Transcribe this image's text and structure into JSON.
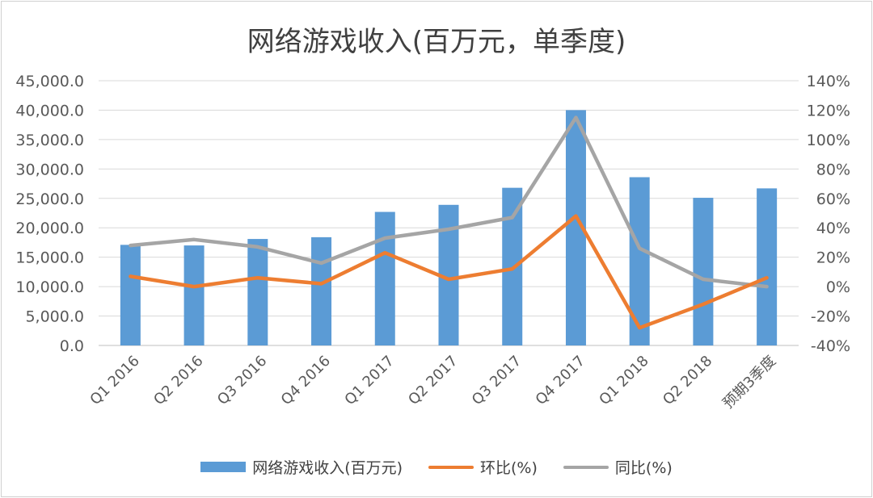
{
  "chart_data": {
    "type": "bar",
    "title": "网络游戏收入(百万元，单季度)",
    "categories": [
      "Q1 2016",
      "Q2 2016",
      "Q3 2016",
      "Q4 2016",
      "Q1 2017",
      "Q2 2017",
      "Q3 2017",
      "Q4 2017",
      "Q1 2018",
      "Q2 2018",
      "预期3季度"
    ],
    "ylim": [
      0,
      45000
    ],
    "yticks": [
      "0.0",
      "5,000.0",
      "10,000.0",
      "15,000.0",
      "20,000.0",
      "25,000.0",
      "30,000.0",
      "35,000.0",
      "40,000.0",
      "45,000.0"
    ],
    "y2lim": [
      -40,
      140
    ],
    "y2ticks": [
      "-40%",
      "-20%",
      "0%",
      "20%",
      "40%",
      "60%",
      "80%",
      "100%",
      "120%",
      "140%"
    ],
    "series": [
      {
        "name": "网络游戏收入(百万元)",
        "type": "bar",
        "axis": "left",
        "color": "#5b9bd5",
        "values": [
          17100,
          17000,
          18100,
          18400,
          22700,
          23900,
          26800,
          40000,
          28600,
          25100,
          26700
        ]
      },
      {
        "name": "环比(%)",
        "type": "line",
        "axis": "right",
        "color": "#ed7d31",
        "values": [
          7,
          0,
          6,
          2,
          23,
          5,
          12,
          48,
          -28,
          -12,
          6
        ]
      },
      {
        "name": "同比(%)",
        "type": "line",
        "axis": "right",
        "color": "#a5a5a5",
        "values": [
          28,
          32,
          27,
          16,
          33,
          39,
          47,
          115,
          26,
          5,
          0
        ]
      }
    ],
    "legend_position": "bottom",
    "grid": true
  }
}
